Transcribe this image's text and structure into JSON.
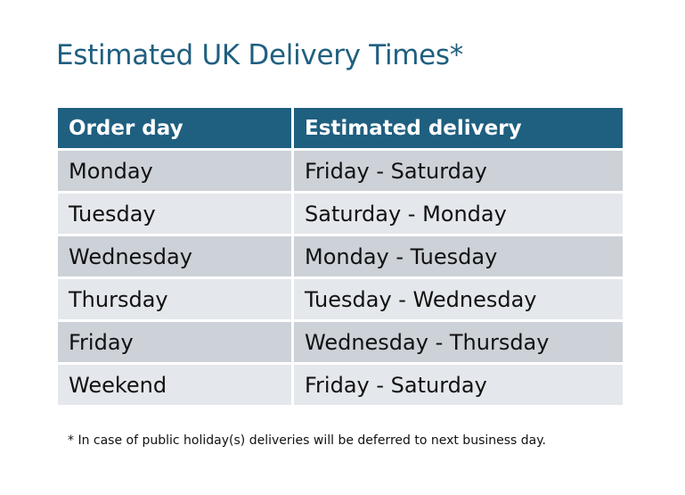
{
  "title": "Estimated UK Delivery Times*",
  "table": {
    "headers": [
      "Order day",
      "Estimated delivery"
    ],
    "rows": [
      [
        "Monday",
        "Friday - Saturday"
      ],
      [
        "Tuesday",
        "Saturday - Monday"
      ],
      [
        "Wednesday",
        "Monday - Tuesday"
      ],
      [
        "Thursday",
        "Tuesday - Wednesday"
      ],
      [
        "Friday",
        "Wednesday - Thursday"
      ],
      [
        "Weekend",
        "Friday - Saturday"
      ]
    ]
  },
  "footnote": "* In case of public holiday(s) deliveries will be deferred to next business day.",
  "colors": {
    "accent": "#1F5F80",
    "row_dark": "#CDD1D8",
    "row_light": "#E4E7EB"
  }
}
